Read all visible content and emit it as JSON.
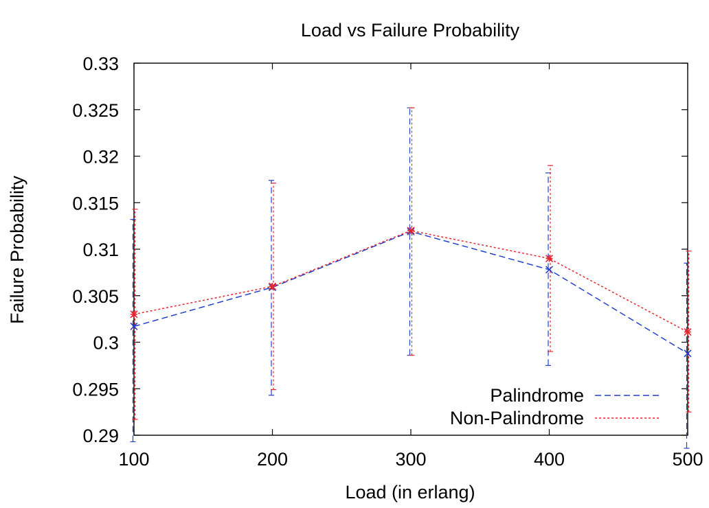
{
  "chart_data": {
    "type": "line",
    "title": "Load vs Failure Probability",
    "xlabel": "Load (in erlang)",
    "ylabel": "Failure Probability",
    "xlim": [
      100,
      500
    ],
    "ylim": [
      0.29,
      0.33
    ],
    "x_ticks": [
      100,
      200,
      300,
      400,
      500
    ],
    "x_tick_labels": [
      "100",
      "200",
      "300",
      "400",
      "500"
    ],
    "y_ticks": [
      0.29,
      0.295,
      0.3,
      0.305,
      0.31,
      0.315,
      0.32,
      0.325,
      0.33
    ],
    "y_tick_labels": [
      "0.29",
      "0.295",
      "0.3",
      "0.305",
      "0.31",
      "0.315",
      "0.32",
      "0.325",
      "0.33"
    ],
    "grid": false,
    "legend_position": "bottom-right",
    "x": [
      100,
      200,
      300,
      400,
      500
    ],
    "series": [
      {
        "name": "Palindrome",
        "color": "#1f3fd1",
        "line_style": "dashed",
        "marker": "x",
        "values": [
          0.3017,
          0.3059,
          0.3119,
          0.3078,
          0.2988
        ],
        "err_low": [
          0.2893,
          0.2943,
          0.2986,
          0.2975,
          0.2886
        ],
        "err_high": [
          0.3132,
          0.3174,
          0.3252,
          0.3182,
          0.3085
        ]
      },
      {
        "name": "Non-Palindrome",
        "color": "#e8262e",
        "line_style": "dotted",
        "marker": "*",
        "values": [
          0.303,
          0.306,
          0.312,
          0.309,
          0.3011
        ],
        "err_low": [
          0.2917,
          0.2949,
          0.2986,
          0.299,
          0.2925
        ],
        "err_high": [
          0.3143,
          0.3171,
          0.3252,
          0.319,
          0.3098
        ]
      }
    ]
  }
}
